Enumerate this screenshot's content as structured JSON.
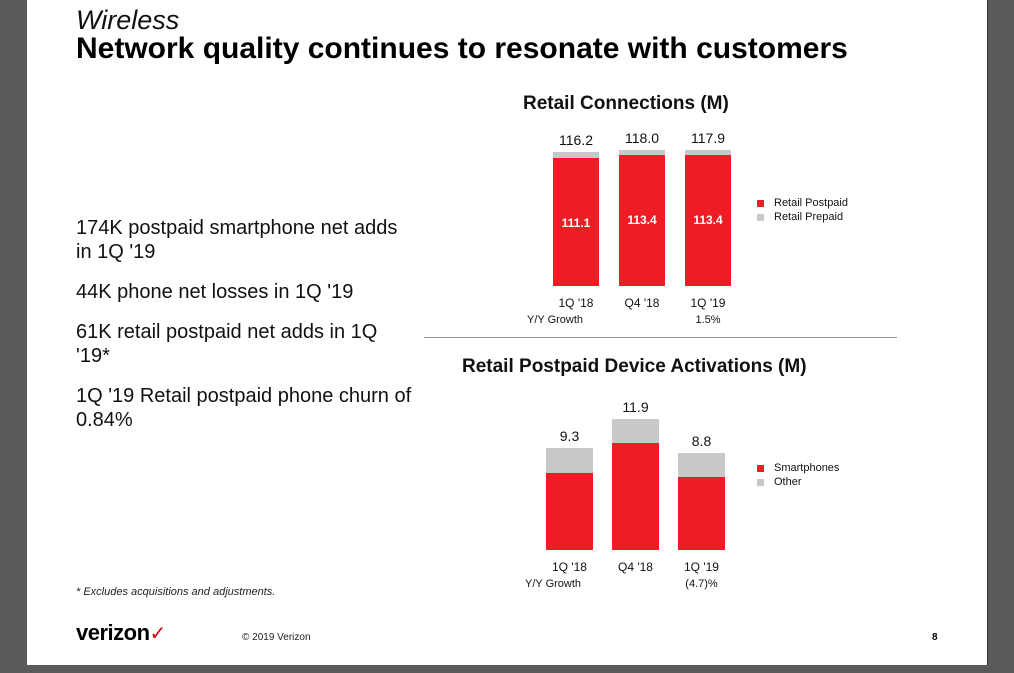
{
  "header": {
    "kicker": "Wireless",
    "title": "Network quality continues to resonate with customers"
  },
  "bullets": [
    "174K postpaid smartphone net adds in 1Q '19",
    "44K phone net losses in 1Q '19",
    "61K retail postpaid net adds in 1Q '19*",
    "1Q '19 Retail postpaid phone churn of 0.84%"
  ],
  "footnote": "* Excludes acquisitions and adjustments.",
  "footer": {
    "logo": "verizon",
    "logo_mark": "✓",
    "copyright": "© 2019 Verizon",
    "page": "8"
  },
  "colors": {
    "primary": "#ee1c25",
    "secondary": "#c8c8c8"
  },
  "chart_data": [
    {
      "type": "bar",
      "stacked": true,
      "title": "Retail Connections (M)",
      "categories": [
        "1Q '18",
        "Q4 '18",
        "1Q '19"
      ],
      "series": [
        {
          "name": "Retail Postpaid",
          "values": [
            111.1,
            113.4,
            113.4
          ]
        },
        {
          "name": "Retail Prepaid",
          "values": [
            5.1,
            4.6,
            4.5
          ]
        }
      ],
      "totals": [
        "116.2",
        "118.0",
        "117.9"
      ],
      "inner_labels": [
        "111.1",
        "113.4",
        "113.4"
      ],
      "growth_label": "Y/Y Growth",
      "growth_values": [
        "",
        "",
        "1.5%"
      ],
      "legend": [
        "Retail Postpaid",
        "Retail Prepaid"
      ],
      "legend_position": "right",
      "ylim": [
        0,
        118
      ]
    },
    {
      "type": "bar",
      "stacked": true,
      "title": "Retail Postpaid Device Activations (M)",
      "categories": [
        "1Q '18",
        "Q4 '18",
        "1Q '19"
      ],
      "series": [
        {
          "name": "Smartphones",
          "values": [
            7.0,
            9.7,
            6.6
          ]
        },
        {
          "name": "Other",
          "values": [
            2.3,
            2.2,
            2.2
          ]
        }
      ],
      "totals": [
        "9.3",
        "11.9",
        "8.8"
      ],
      "growth_label": "Y/Y Growth",
      "growth_values": [
        "",
        "",
        "(4.7)%"
      ],
      "legend": [
        "Smartphones",
        "Other"
      ],
      "legend_position": "right",
      "ylim": [
        0,
        11.9
      ]
    }
  ]
}
